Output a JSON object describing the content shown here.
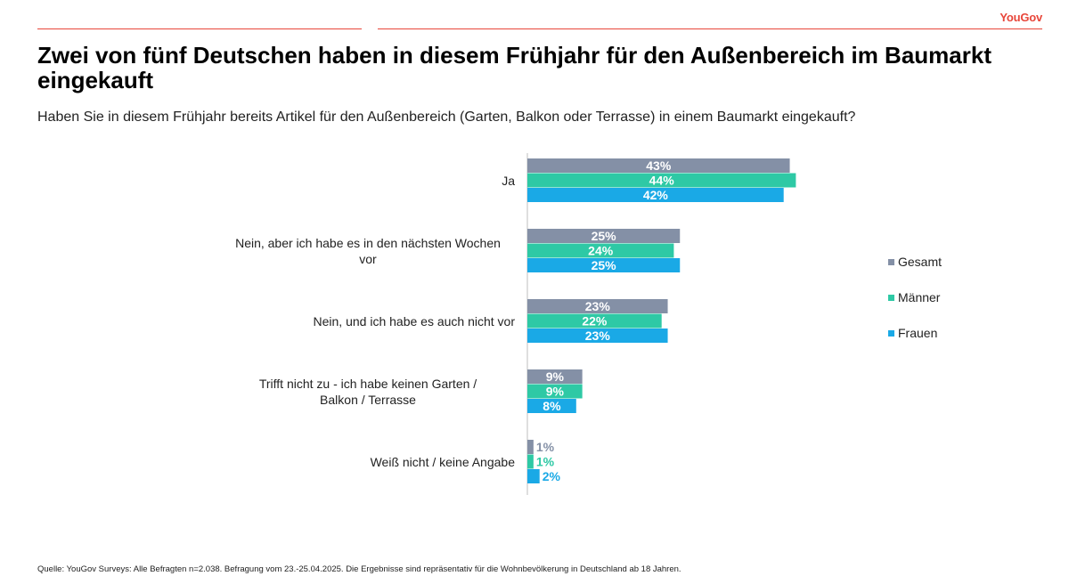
{
  "brand": "YouGov",
  "title": "Zwei von fünf Deutschen haben in diesem Frühjahr für den Außenbereich im Baumarkt eingekauft",
  "subtitle": "Haben Sie in diesem Frühjahr bereits Artikel für den Außenbereich (Garten, Balkon oder Terrasse) in einem Baumarkt eingekauft?",
  "source": "Quelle: YouGov Surveys: Alle Befragten n=2.038. Befragung vom 23.-25.04.2025. Die Ergebnisse sind repräsentativ für die Wohnbevölkerung in Deutschland ab 18 Jahren.",
  "colors": {
    "accent": "#e8463a",
    "gesamt": "#8490a6",
    "maenner": "#2ec9a5",
    "frauen": "#1aa9e6"
  },
  "chart_data": {
    "type": "bar",
    "orientation": "horizontal",
    "categories": [
      "Ja",
      "Nein, aber ich habe es in den nächsten Wochen vor",
      "Nein, und ich habe es auch nicht vor",
      "Trifft nicht zu - ich habe keinen Garten / Balkon / Terrasse",
      "Weiß nicht / keine Angabe"
    ],
    "series": [
      {
        "name": "Gesamt",
        "color": "#8490a6",
        "values": [
          43,
          25,
          23,
          9,
          1
        ]
      },
      {
        "name": "Männer",
        "color": "#2ec9a5",
        "values": [
          44,
          24,
          22,
          9,
          1
        ]
      },
      {
        "name": "Frauen",
        "color": "#1aa9e6",
        "values": [
          42,
          25,
          23,
          8,
          2
        ]
      }
    ],
    "value_suffix": "%",
    "xlim": [
      0,
      50
    ],
    "grid": false,
    "legend_position": "right"
  }
}
